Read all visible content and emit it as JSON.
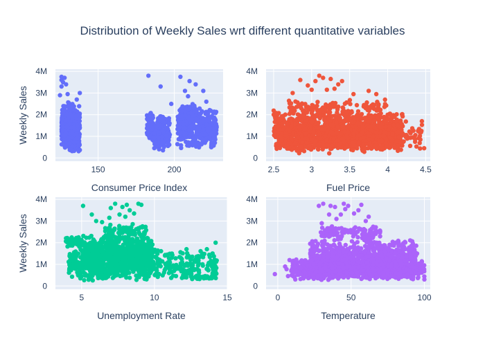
{
  "chart_data": {
    "type": "scatter",
    "title": "Distribution of Weekly Sales wrt different quantitative variables",
    "shared_ylabel": "Weekly Sales",
    "y_ticks": [
      {
        "value": 0,
        "label": "0"
      },
      {
        "value": 1000000,
        "label": "1M"
      },
      {
        "value": 2000000,
        "label": "2M"
      },
      {
        "value": 3000000,
        "label": "3M"
      },
      {
        "value": 4000000,
        "label": "4M"
      }
    ],
    "subplots": [
      {
        "id": "cpi",
        "xlabel": "Consumer Price Index",
        "ylabel": "Weekly Sales",
        "color": "#636efa",
        "xlim": [
          122,
          232
        ],
        "ylim": [
          -150000,
          4100000
        ],
        "x_ticks": [
          {
            "value": 150,
            "label": "150"
          },
          {
            "value": 200,
            "label": "200"
          }
        ],
        "clusters": [
          {
            "x_range": [
              126,
              138
            ],
            "y_range": [
              200000,
              2600000
            ],
            "count": 420
          },
          {
            "x_range": [
              131,
              137
            ],
            "y_range": [
              300000,
              1600000
            ],
            "count": 220
          },
          {
            "x_range": [
              182,
              186
            ],
            "y_range": [
              600000,
              2300000
            ],
            "count": 60
          },
          {
            "x_range": [
              186,
              197
            ],
            "y_range": [
              350000,
              1700000
            ],
            "count": 160
          },
          {
            "x_range": [
              189,
              197
            ],
            "y_range": [
              1500000,
              2000000
            ],
            "count": 40
          },
          {
            "x_range": [
              202,
              228
            ],
            "y_range": [
              400000,
              2400000
            ],
            "count": 420
          },
          {
            "x_range": [
              204,
              214
            ],
            "y_range": [
              1700000,
              2500000
            ],
            "count": 80
          }
        ],
        "outliers": [
          [
            126,
            3750000
          ],
          [
            126,
            3600000
          ],
          [
            128,
            3700000
          ],
          [
            127,
            3500000
          ],
          [
            126,
            3300000
          ],
          [
            129,
            3400000
          ],
          [
            130,
            2950000
          ],
          [
            125,
            2900000
          ],
          [
            136,
            2700000
          ],
          [
            138,
            3000000
          ],
          [
            183,
            3800000
          ],
          [
            191,
            3300000
          ],
          [
            198,
            2500000
          ],
          [
            204,
            3750000
          ],
          [
            210,
            3550000
          ],
          [
            207,
            3100000
          ],
          [
            214,
            3400000
          ],
          [
            219,
            3100000
          ],
          [
            221,
            2600000
          ],
          [
            209,
            2850000
          ]
        ]
      },
      {
        "id": "fuel",
        "xlabel": "Fuel Price",
        "ylabel": "",
        "color": "#ef553b",
        "xlim": [
          2.4,
          4.56
        ],
        "ylim": [
          -150000,
          4100000
        ],
        "x_ticks": [
          {
            "value": 2.5,
            "label": "2.5"
          },
          {
            "value": 3,
            "label": "3"
          },
          {
            "value": 3.5,
            "label": "3.5"
          },
          {
            "value": 4,
            "label": "4"
          },
          {
            "value": 4.5,
            "label": "4.5"
          }
        ],
        "clusters": [
          {
            "x_range": [
              2.5,
              4.2
            ],
            "y_range": [
              200000,
              2300000
            ],
            "count": 1100
          },
          {
            "x_range": [
              2.55,
              4.15
            ],
            "y_range": [
              300000,
              1600000
            ],
            "count": 500
          },
          {
            "x_range": [
              2.7,
              4.0
            ],
            "y_range": [
              2100000,
              2700000
            ],
            "count": 90
          },
          {
            "x_range": [
              4.2,
              4.47
            ],
            "y_range": [
              250000,
              1800000
            ],
            "count": 30
          }
        ],
        "outliers": [
          [
            2.85,
            3600000
          ],
          [
            2.95,
            3350000
          ],
          [
            3.1,
            3800000
          ],
          [
            3.15,
            3700000
          ],
          [
            3.05,
            3550000
          ],
          [
            3.25,
            3650000
          ],
          [
            3.35,
            3400000
          ],
          [
            3.4,
            3550000
          ],
          [
            3.0,
            3150000
          ],
          [
            3.2,
            3150000
          ],
          [
            3.3,
            3200000
          ],
          [
            3.55,
            2950000
          ],
          [
            3.75,
            3100000
          ],
          [
            3.85,
            2950000
          ],
          [
            2.75,
            3000000
          ],
          [
            4.45,
            1700000
          ],
          [
            4.4,
            1250000
          ],
          [
            4.48,
            450000
          ],
          [
            4.43,
            850000
          ]
        ]
      },
      {
        "id": "unemployment",
        "xlabel": "Unemployment Rate",
        "ylabel": "Weekly Sales",
        "color": "#00cc96",
        "xlim": [
          3.2,
          15.0
        ],
        "ylim": [
          -150000,
          4100000
        ],
        "x_ticks": [
          {
            "value": 5,
            "label": "5"
          },
          {
            "value": 10,
            "label": "10"
          },
          {
            "value": 15,
            "label": "15"
          }
        ],
        "clusters": [
          {
            "x_range": [
              3.9,
              5.0
            ],
            "y_range": [
              1800000,
              2300000
            ],
            "count": 60
          },
          {
            "x_range": [
              4.1,
              5.2
            ],
            "y_range": [
              300000,
              1700000
            ],
            "count": 80
          },
          {
            "x_range": [
              5.0,
              9.9
            ],
            "y_range": [
              200000,
              2400000
            ],
            "count": 900
          },
          {
            "x_range": [
              6.5,
              9.5
            ],
            "y_range": [
              2100000,
              2900000
            ],
            "count": 90
          },
          {
            "x_range": [
              9.9,
              14.3
            ],
            "y_range": [
              300000,
              1800000
            ],
            "count": 180
          },
          {
            "x_range": [
              12.5,
              14.3
            ],
            "y_range": [
              300000,
              500000
            ],
            "count": 30
          }
        ],
        "outliers": [
          [
            5.1,
            3700000
          ],
          [
            6.0,
            3000000
          ],
          [
            7.0,
            3600000
          ],
          [
            7.3,
            3800000
          ],
          [
            7.8,
            3650000
          ],
          [
            8.1,
            3750000
          ],
          [
            8.3,
            3500000
          ],
          [
            8.6,
            3350000
          ],
          [
            8.9,
            3800000
          ],
          [
            9.1,
            3750000
          ],
          [
            7.6,
            3300000
          ],
          [
            6.9,
            3150000
          ],
          [
            8.0,
            3200000
          ],
          [
            5.7,
            3300000
          ],
          [
            6.4,
            2950000
          ],
          [
            14.2,
            2000000
          ],
          [
            13.6,
            1700000
          ],
          [
            12.2,
            1700000
          ],
          [
            11.2,
            1500000
          ]
        ]
      },
      {
        "id": "temperature",
        "xlabel": "Temperature",
        "ylabel": "",
        "color": "#ab63fa",
        "xlim": [
          -8,
          104
        ],
        "ylim": [
          -150000,
          4100000
        ],
        "x_ticks": [
          {
            "value": 0,
            "label": "0"
          },
          {
            "value": 50,
            "label": "50"
          },
          {
            "value": 100,
            "label": "100"
          }
        ],
        "clusters": [
          {
            "x_range": [
              10,
              100
            ],
            "y_range": [
              250000,
              1300000
            ],
            "count": 800
          },
          {
            "x_range": [
              22,
              95
            ],
            "y_range": [
              300000,
              2200000
            ],
            "count": 800
          },
          {
            "x_range": [
              28,
              70
            ],
            "y_range": [
              2100000,
              2800000
            ],
            "count": 100
          },
          {
            "x_range": [
              5,
              20
            ],
            "y_range": [
              400000,
              1000000
            ],
            "count": 30
          }
        ],
        "outliers": [
          [
            -2,
            550000
          ],
          [
            5,
            900000
          ],
          [
            8,
            1200000
          ],
          [
            28,
            3700000
          ],
          [
            31,
            3800000
          ],
          [
            36,
            3700000
          ],
          [
            39,
            3650000
          ],
          [
            45,
            3800000
          ],
          [
            48,
            3700000
          ],
          [
            57,
            3750000
          ],
          [
            43,
            3300000
          ],
          [
            46,
            3550000
          ],
          [
            52,
            3350000
          ],
          [
            60,
            3000000
          ],
          [
            62,
            3200000
          ],
          [
            55,
            3500000
          ],
          [
            35,
            3300000
          ],
          [
            40,
            3100000
          ],
          [
            30,
            2900000
          ],
          [
            66,
            2700000
          ]
        ]
      }
    ]
  }
}
